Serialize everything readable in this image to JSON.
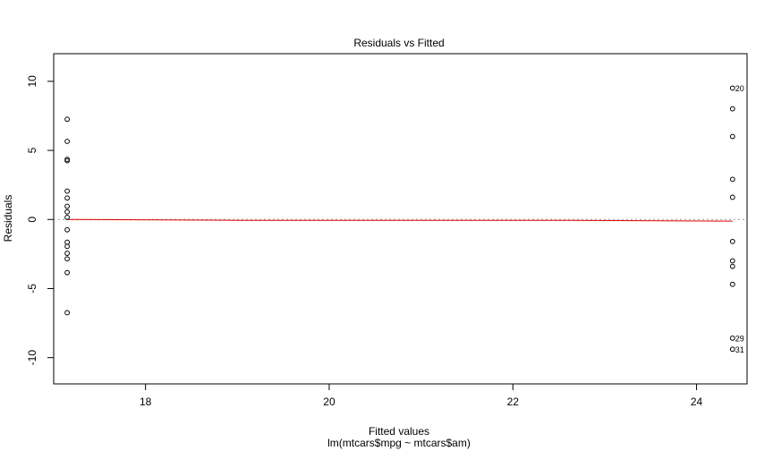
{
  "chart_data": {
    "type": "scatter",
    "title": "Residuals vs Fitted",
    "xlabel": "Fitted values",
    "ylabel": "Residuals",
    "sub_caption": "lm(mtcars$mpg ~ mtcars$am)",
    "xlim": [
      17.0,
      24.55
    ],
    "ylim": [
      -11.9,
      12.0
    ],
    "x_ticks": [
      18,
      20,
      22,
      24
    ],
    "y_ticks": [
      -10,
      -5,
      0,
      5,
      10
    ],
    "y_tick_labels": [
      "-10",
      "-5",
      "0",
      "5",
      "10"
    ],
    "x_tick_labels": [
      "18",
      "20",
      "22",
      "24"
    ],
    "grid": false,
    "points": [
      {
        "x": 17.147,
        "y": 7.253
      },
      {
        "x": 17.147,
        "y": 5.653
      },
      {
        "x": 17.147,
        "y": 4.353
      },
      {
        "x": 17.147,
        "y": 4.253
      },
      {
        "x": 17.147,
        "y": 2.053
      },
      {
        "x": 17.147,
        "y": 1.553
      },
      {
        "x": 17.147,
        "y": 0.953
      },
      {
        "x": 17.147,
        "y": 0.553
      },
      {
        "x": 17.147,
        "y": 0.153
      },
      {
        "x": 17.147,
        "y": -0.747
      },
      {
        "x": 17.147,
        "y": -1.647
      },
      {
        "x": 17.147,
        "y": -1.947
      },
      {
        "x": 17.147,
        "y": -2.447
      },
      {
        "x": 17.147,
        "y": -2.847
      },
      {
        "x": 17.147,
        "y": -3.847
      },
      {
        "x": 17.147,
        "y": -6.747
      },
      {
        "x": 24.392,
        "y": 9.508,
        "label": "20"
      },
      {
        "x": 24.392,
        "y": 8.008
      },
      {
        "x": 24.392,
        "y": 6.008
      },
      {
        "x": 24.392,
        "y": 2.908
      },
      {
        "x": 24.392,
        "y": 1.608
      },
      {
        "x": 24.392,
        "y": -1.592
      },
      {
        "x": 24.392,
        "y": -2.992
      },
      {
        "x": 24.392,
        "y": -3.392
      },
      {
        "x": 24.392,
        "y": -4.692
      },
      {
        "x": 24.392,
        "y": -8.592,
        "label": "29"
      },
      {
        "x": 24.392,
        "y": -9.392,
        "label": "31"
      }
    ],
    "smoother": {
      "color": "#dd0000",
      "x": [
        17.147,
        19.0,
        22.6,
        24.392
      ],
      "y": [
        0.0,
        -0.06,
        -0.06,
        -0.12
      ]
    },
    "reference_line": {
      "y": 0,
      "style": "dotted",
      "color": "#999999"
    }
  }
}
